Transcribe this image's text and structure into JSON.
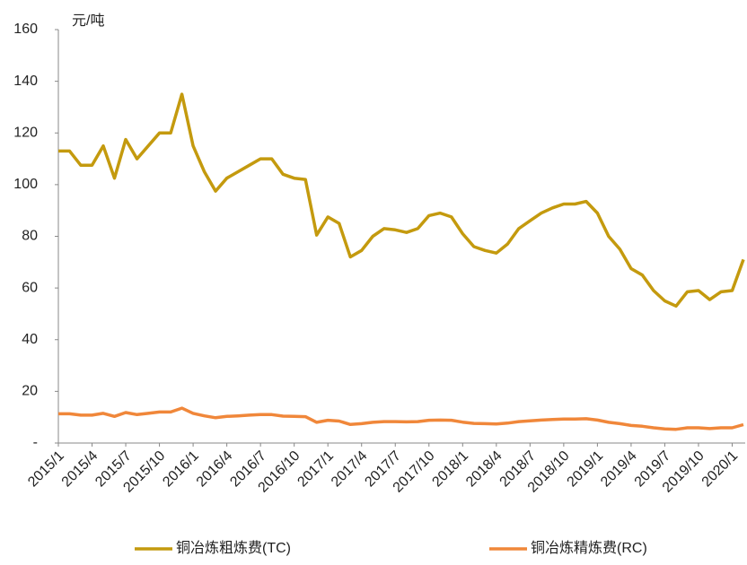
{
  "chart_data": {
    "type": "line",
    "ylabel": "元/吨",
    "categories": [
      "2015/1",
      null,
      null,
      "2015/4",
      null,
      null,
      "2015/7",
      null,
      null,
      "2015/10",
      null,
      null,
      "2016/1",
      null,
      null,
      "2016/4",
      null,
      null,
      "2016/7",
      null,
      null,
      "2016/10",
      null,
      null,
      "2017/1",
      null,
      null,
      "2017/4",
      null,
      null,
      "2017/7",
      null,
      null,
      "2017/10",
      null,
      null,
      "2018/1",
      null,
      null,
      "2018/4",
      null,
      null,
      "2018/7",
      null,
      null,
      "2018/10",
      null,
      null,
      "2019/1",
      null,
      null,
      "2019/4",
      null,
      null,
      "2019/7",
      null,
      null,
      "2019/10",
      null,
      null,
      "2020/1",
      null
    ],
    "series": [
      {
        "name": "铜冶炼粗炼费(TC)",
        "color": "#c49a0e",
        "values": [
          113,
          113,
          107.5,
          107.5,
          115,
          102.5,
          117.5,
          110,
          115,
          120,
          120,
          135,
          115,
          105,
          97.5,
          102.5,
          105,
          107.5,
          110,
          110,
          104,
          102.5,
          102,
          80.5,
          87.5,
          85,
          72,
          74.5,
          80,
          83,
          82.5,
          81.5,
          83,
          88,
          89,
          87.5,
          81,
          76,
          74.5,
          73.5,
          77,
          83,
          86,
          89,
          91,
          92.5,
          92.5,
          93.5,
          89,
          80,
          75,
          67.5,
          65,
          59,
          55,
          53,
          58.5,
          59,
          55.5,
          58.5,
          59,
          71
        ]
      },
      {
        "name": "铜冶炼精炼费(RC)",
        "color": "#f0873a",
        "values": [
          11.3,
          11.3,
          10.8,
          10.8,
          11.5,
          10.3,
          11.8,
          11,
          11.5,
          12,
          12,
          13.5,
          11.5,
          10.5,
          9.8,
          10.3,
          10.5,
          10.8,
          11,
          11,
          10.4,
          10.3,
          10.2,
          8,
          8.8,
          8.5,
          7.2,
          7.5,
          8,
          8.3,
          8.3,
          8.2,
          8.3,
          8.8,
          8.9,
          8.8,
          8.1,
          7.6,
          7.5,
          7.4,
          7.7,
          8.3,
          8.6,
          8.9,
          9.1,
          9.3,
          9.3,
          9.4,
          8.9,
          8,
          7.5,
          6.8,
          6.5,
          5.9,
          5.5,
          5.3,
          5.9,
          5.9,
          5.6,
          5.9,
          5.9,
          7.1
        ]
      }
    ],
    "ylim": [
      0,
      160
    ],
    "yticks": [
      {
        "value": 0,
        "label": "-"
      },
      20,
      40,
      60,
      80,
      100,
      120,
      140,
      160
    ],
    "grid": false,
    "legend": "bottom"
  }
}
